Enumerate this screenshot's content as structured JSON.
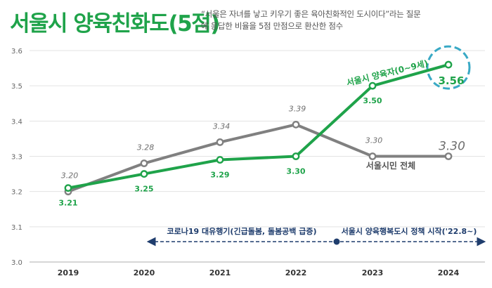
{
  "title": "서울시 양육친화도(5점)",
  "subtitle": "“서울은 자녀를 낳고 키우기 좋은 육아친화적인 도시이다”라는 질문에 응답한 비율을 5점 만점으로 환산한 점수",
  "colors": {
    "green": "#1fa34a",
    "gray": "#808080",
    "navy": "#1f3d6d",
    "highlight": "#39a9c5"
  },
  "chart_data": {
    "type": "line",
    "categories": [
      "2019",
      "2020",
      "2021",
      "2022",
      "2023",
      "2024"
    ],
    "ylim": [
      3.0,
      3.6
    ],
    "yticks": [
      "3.0",
      "3.1",
      "3.2",
      "3.3",
      "3.4",
      "3.5",
      "3.6"
    ],
    "series": [
      {
        "name": "서울시민 전체",
        "values": [
          3.2,
          3.28,
          3.34,
          3.39,
          3.3,
          3.3
        ],
        "labels": [
          "3.20",
          "3.28",
          "3.34",
          "3.39",
          "3.30",
          "3.30"
        ]
      },
      {
        "name": "서울시 양육자(0~9세)",
        "values": [
          3.21,
          3.25,
          3.29,
          3.3,
          3.5,
          3.56
        ],
        "labels": [
          "3.21",
          "3.25",
          "3.29",
          "3.30",
          "3.50",
          "3.56"
        ]
      }
    ],
    "annotations": [
      {
        "text": "코로나19 대유행기(긴급돌봄, 돌봄공백 급증)"
      },
      {
        "text": "서울시 양육행복도시 정책 시작('22.8~)"
      }
    ]
  }
}
